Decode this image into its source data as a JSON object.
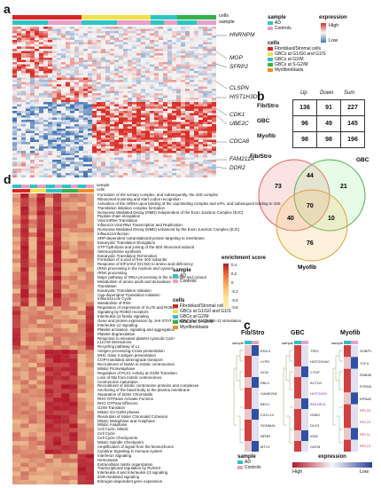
{
  "panel_a": {
    "letter": "a",
    "track_cells": "cells",
    "track_sample": "sample",
    "genes": [
      "HNRNPM",
      "MGP",
      "SFRP2",
      "CLSPN",
      "HIST1H3D",
      "CDK1",
      "UBE2C",
      "CDCA8",
      "FAM211A",
      "DDR2"
    ],
    "legend_sample_title": "sample",
    "legend_sample_items": [
      {
        "label": "AD",
        "color": "#2fc4c4"
      },
      {
        "label": "Controls",
        "color": "#e8a0c8"
      }
    ],
    "legend_cells_title": "cells",
    "legend_cells_items": [
      {
        "label": "Fibroblast/Stromal cells",
        "color": "#d62728"
      },
      {
        "label": "GBCs at G1/G0 and G1/S",
        "color": "#f0e04a"
      },
      {
        "label": "GBCs at G2/M",
        "color": "#2fc4c4"
      },
      {
        "label": "GBCs at S-G2/M",
        "color": "#34b24a"
      },
      {
        "label": "Myofibroblasts",
        "color": "#f28c28"
      }
    ],
    "legend_expr_title": "expression",
    "legend_expr_high": "High",
    "legend_expr_low": "Low"
  },
  "panel_b": {
    "letter": "b",
    "col_headers": [
      "Up",
      "Down",
      "Sum"
    ],
    "rows": [
      {
        "label": "Fib/Stro",
        "values": [
          "136",
          "91",
          "227"
        ]
      },
      {
        "label": "GBC",
        "values": [
          "96",
          "49",
          "145"
        ]
      },
      {
        "label": "Myofib",
        "values": [
          "98",
          "98",
          "196"
        ]
      }
    ],
    "venn": {
      "labels": [
        "Fib/Stro",
        "GBC",
        "Myofib"
      ],
      "numbers": [
        "73",
        "44",
        "21",
        "70",
        "40",
        "10",
        "76"
      ],
      "colors": [
        "#f08080",
        "#90ee90",
        "#f5c060"
      ]
    }
  },
  "panel_d": {
    "letter": "d",
    "track_sample": "sample",
    "track_cells": "cells",
    "pathways": [
      "Formation of the ternary complex, and subsequently, the 43S complex",
      "Ribosomal scanning and start codon recognition",
      "Activation of the mRNA upon binding of the cap-binding complex and eIFs, and subsequent binding to 43S",
      "Translation initiation complex formation",
      "Nonsense Mediated Decay (NMD) independent of the Exon Junction Complex (EJC)",
      "Peptide chain elongation",
      "Viral mRNA Translation",
      "Influenza Viral RNA Transcription and Replication",
      "Nonsense Mediated Decay (NMD) enhanced by the Exon Junction Complex (EJC)",
      "Influenza Infection",
      "SRP-dependent cotranslational protein targeting to membrane",
      "Eukaryotic Translation Elongation",
      "GTP hydrolysis and joining of the 60S ribosomal subunit",
      "Selenocysteine synthesis",
      "Eukaryotic Translation Termination",
      "Formation of a pool of free 40S subunits",
      "Response of EIF2AK4 (GCN2) to amino acid deficiency",
      "rRNA processing in the nucleus and cytosol",
      "rRNA processing",
      "Major pathway of rRNA processing in the nucleolus and cytosol",
      "Metabolism of amino acids and derivatives",
      "Translation",
      "Eukaryotic Translation Initiation",
      "Cap-dependent Translation Initiation",
      "Influenza Life Cycle",
      "Metabolism of RNA",
      "Regulation of expression of SLITs and ROBOs",
      "Signaling by ROBO receptors",
      "Interleukin-12 family signaling",
      "Gene and protein expression by JAK-STAT signaling after Interleukin-12 stimulation",
      "Interleukin-12 signaling",
      "Platelet activation, signaling and aggregation",
      "Platelet degranulation",
      "Response to elevated platelet cytosolic Ca2+",
      "L1CAM interactions",
      "Recycling pathway of L1",
      "Antigen processing-Cross presentation",
      "MHC class II antigen presentation",
      "COPI-mediated anterograde transport",
      "Recruitment of NuMA to mitotic centrosomes",
      "Mitotic Prometaphase",
      "Regulation of PLK1 Activity at G2/M Transition",
      "Loss of Nlp from mitotic centrosomes",
      "Centrosome maturation",
      "Recruitment of mitotic centrosome proteins and complexes",
      "Anchoring of the basal body to the plasma membrane",
      "Separation of Sister Chromatids",
      "RHO GTPases Activate Formins",
      "RHO GTPase Effectors",
      "G2/M Transition",
      "Mitotic G2-G2/M phases",
      "Resolution of Sister Chromatid Cohesion",
      "Mitotic Metaphase and Anaphase",
      "Mitotic Anaphase",
      "Cell Cycle, Mitotic",
      "Cell Cycle",
      "Cell Cycle Checkpoints",
      "Mitotic Spindle Checkpoint",
      "Amplification of signal from the kinetochores",
      "Cytokine Signaling in Immune system",
      "Interferon Signaling",
      "Hemostasis",
      "Extracellular matrix organization",
      "Transcriptional regulation by RUNX3",
      "Interleukin-4 and Interleukin-13 signaling",
      "ESR-mediated signaling",
      "Estrogen-dependent gene expression"
    ],
    "legend_sample_title": "sample",
    "legend_sample_items": [
      {
        "label": "AD",
        "color": "#2fc4c4"
      },
      {
        "label": "Controls",
        "color": "#e8a0c8"
      }
    ],
    "legend_cells_title": "cells",
    "legend_cells_items": [
      {
        "label": "Fibroblast/Stromal cells",
        "color": "#d62728"
      },
      {
        "label": "GBCs at G1/G0 and G1/S",
        "color": "#f0e04a"
      },
      {
        "label": "GBCs at G2/M",
        "color": "#2fc4c4"
      },
      {
        "label": "GBCs at S-G2/M",
        "color": "#34b24a"
      },
      {
        "label": "Myofibroblasts",
        "color": "#f28c28"
      }
    ],
    "legend_score_title": "enrichment score",
    "legend_score_ticks": [
      "0.4",
      "0.2",
      "0",
      "-0.2",
      "-0.4",
      "-0.6"
    ]
  },
  "panel_c": {
    "letter": "c",
    "groups": [
      {
        "title": "Fib/Stro",
        "track": "sample",
        "genes": [
          "EDIL3",
          "LYPD",
          "DCN",
          "RBL2",
          "CAMK2N1",
          "BEX1",
          "CXCL12",
          "SCMMAL",
          "NFNR",
          "MT1X"
        ]
      },
      {
        "title": "GBC",
        "track": "sample",
        "genes": [
          "TRIO",
          "HIST2H2AC",
          "CTGF",
          "ACTG2",
          "HIST2H2K",
          "BHLHE41",
          "GNB2",
          "DLK3",
          "IGB2",
          "GATM"
        ]
      },
      {
        "title": "Myofib",
        "track": "sample",
        "genes": [
          "SOBP1",
          "TCF4",
          "RNB38",
          "RTRN3",
          "KPNA2",
          "RPL23",
          "RPL10",
          "RPL11",
          "RPL13"
        ]
      }
    ],
    "legend_sample_title": "sample",
    "legend_sample_items": [
      {
        "label": "AD",
        "color": "#2fc4c4"
      },
      {
        "label": "Controls",
        "color": "#e8a0c8"
      }
    ],
    "legend_expr_title": "expression",
    "legend_expr_high": "High",
    "legend_expr_low": "Low"
  },
  "colors": {
    "heat_high": "#d73027",
    "heat_mid": "#f7f7f7",
    "heat_low": "#4575b4",
    "score_high": "#b2182b",
    "score_low": "#fff2b0"
  }
}
